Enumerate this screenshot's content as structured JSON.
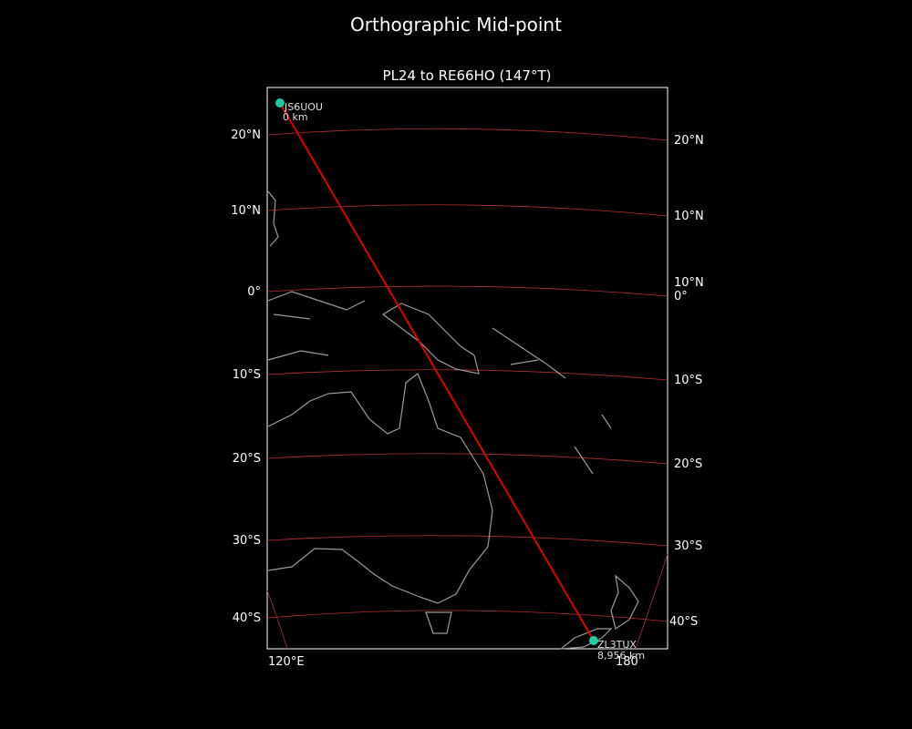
{
  "header": {
    "title": "Orthographic Mid-point"
  },
  "map": {
    "subtitle": "PL24 to RE66HO (147°T)",
    "left_lat_labels": [
      "20°N",
      "10°N",
      "0°",
      "10°S",
      "20°S",
      "30°S",
      "40°S"
    ],
    "right_lat_labels": [
      "20°N",
      "10°N",
      "10°N",
      "0°",
      "10°S",
      "20°S",
      "30°S",
      "40°S"
    ],
    "lon_labels": [
      "120°E",
      "180"
    ],
    "stations": [
      {
        "callsign": "JS6UOU",
        "distance": "0 km"
      },
      {
        "callsign": "ZL3TUX",
        "distance": "8,956 km"
      }
    ]
  }
}
